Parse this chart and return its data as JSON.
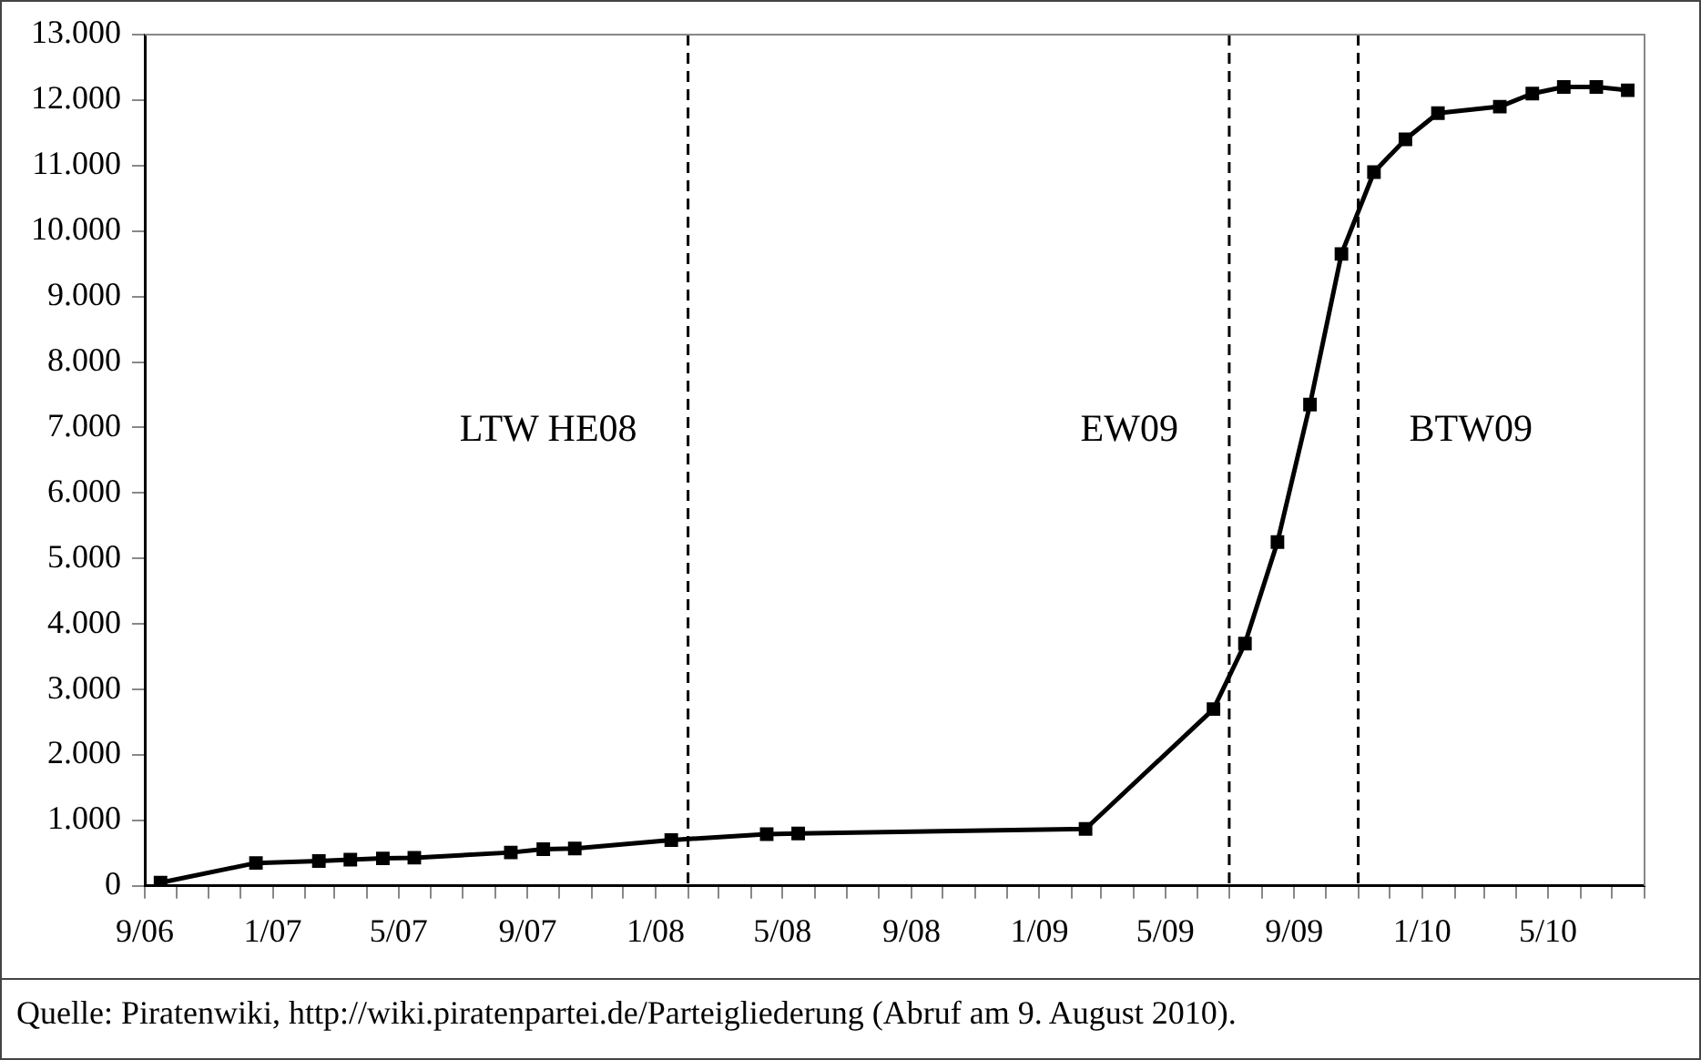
{
  "chart_data": {
    "type": "line",
    "x": [
      "2006-09-16",
      "2006-12-16",
      "2007-02-14",
      "2007-03-16",
      "2007-04-16",
      "2007-05-16",
      "2007-08-16",
      "2007-09-16",
      "2007-10-16",
      "2008-01-16",
      "2008-04-16",
      "2008-05-16",
      "2009-02-14",
      "2009-06-16",
      "2009-07-16",
      "2009-08-16",
      "2009-09-16",
      "2009-10-16",
      "2009-11-16",
      "2009-12-16",
      "2010-01-16",
      "2010-03-16",
      "2010-04-16",
      "2010-05-16",
      "2010-06-16",
      "2010-07-16"
    ],
    "series": [
      {
        "color": "#000000",
        "values": [
          50,
          350,
          380,
          400,
          420,
          430,
          510,
          560,
          570,
          700,
          790,
          800,
          870,
          2700,
          3700,
          5250,
          7350,
          9650,
          10900,
          11400,
          11800,
          11900,
          12100,
          12200,
          12200,
          12150
        ]
      }
    ],
    "xlim": [
      "2006-09",
      "2010-08"
    ],
    "xticks": [
      {
        "value": "2006-09",
        "label": "9/06"
      },
      {
        "value": "2006-10",
        "label": null
      },
      {
        "value": "2006-11",
        "label": null
      },
      {
        "value": "2006-12",
        "label": null
      },
      {
        "value": "2007-01",
        "label": "1/07"
      },
      {
        "value": "2007-02",
        "label": null
      },
      {
        "value": "2007-03",
        "label": null
      },
      {
        "value": "2007-04",
        "label": null
      },
      {
        "value": "2007-05",
        "label": "5/07"
      },
      {
        "value": "2007-06",
        "label": null
      },
      {
        "value": "2007-07",
        "label": null
      },
      {
        "value": "2007-08",
        "label": null
      },
      {
        "value": "2007-09",
        "label": "9/07"
      },
      {
        "value": "2007-10",
        "label": null
      },
      {
        "value": "2007-11",
        "label": null
      },
      {
        "value": "2007-12",
        "label": null
      },
      {
        "value": "2008-01",
        "label": "1/08"
      },
      {
        "value": "2008-02",
        "label": null
      },
      {
        "value": "2008-03",
        "label": null
      },
      {
        "value": "2008-04",
        "label": null
      },
      {
        "value": "2008-05",
        "label": "5/08"
      },
      {
        "value": "2008-06",
        "label": null
      },
      {
        "value": "2008-07",
        "label": null
      },
      {
        "value": "2008-08",
        "label": null
      },
      {
        "value": "2008-09",
        "label": "9/08"
      },
      {
        "value": "2008-10",
        "label": null
      },
      {
        "value": "2008-11",
        "label": null
      },
      {
        "value": "2008-12",
        "label": null
      },
      {
        "value": "2009-01",
        "label": "1/09"
      },
      {
        "value": "2009-02",
        "label": null
      },
      {
        "value": "2009-03",
        "label": null
      },
      {
        "value": "2009-04",
        "label": null
      },
      {
        "value": "2009-05",
        "label": "5/09"
      },
      {
        "value": "2009-06",
        "label": null
      },
      {
        "value": "2009-07",
        "label": null
      },
      {
        "value": "2009-08",
        "label": null
      },
      {
        "value": "2009-09",
        "label": "9/09"
      },
      {
        "value": "2009-10",
        "label": null
      },
      {
        "value": "2009-11",
        "label": null
      },
      {
        "value": "2009-12",
        "label": null
      },
      {
        "value": "2010-01",
        "label": "1/10"
      },
      {
        "value": "2010-02",
        "label": null
      },
      {
        "value": "2010-03",
        "label": null
      },
      {
        "value": "2010-04",
        "label": null
      },
      {
        "value": "2010-05",
        "label": "5/10"
      },
      {
        "value": "2010-06",
        "label": null
      },
      {
        "value": "2010-07",
        "label": null
      },
      {
        "value": "2010-08",
        "label": null
      }
    ],
    "ylim": [
      0,
      13000
    ],
    "yticks": [
      0,
      {
        "value": 1000,
        "label": "1.000"
      },
      {
        "value": 2000,
        "label": "2.000"
      },
      {
        "value": 3000,
        "label": "3.000"
      },
      {
        "value": 4000,
        "label": "4.000"
      },
      {
        "value": 5000,
        "label": "5.000"
      },
      {
        "value": 6000,
        "label": "6.000"
      },
      {
        "value": 7000,
        "label": "7.000"
      },
      {
        "value": 8000,
        "label": "8.000"
      },
      {
        "value": 9000,
        "label": "9.000"
      },
      {
        "value": 10000,
        "label": "10.000"
      },
      {
        "value": 11000,
        "label": "11.000"
      },
      {
        "value": 12000,
        "label": "12.000"
      },
      {
        "value": 13000,
        "label": "13.000"
      }
    ],
    "ref_lines": [
      {
        "axis": "x",
        "value": "2008-02",
        "label": "LTW HE08",
        "color": "#000000",
        "line_style": "dashed"
      },
      {
        "axis": "x",
        "value": "2009-07",
        "label": "EW09",
        "color": "#000000",
        "line_style": "dashed"
      },
      {
        "axis": "x",
        "value": "2009-11",
        "label": "BTW09",
        "color": "#000000",
        "line_style": "dashed"
      }
    ],
    "annotations": [
      "Quelle: Piratenwiki, http://wiki.piratenpartei.de/Parteigliederung (Abruf am 9. August 2010)."
    ],
    "marker": "square",
    "line_style": "solid",
    "grid": false,
    "legend": false
  }
}
